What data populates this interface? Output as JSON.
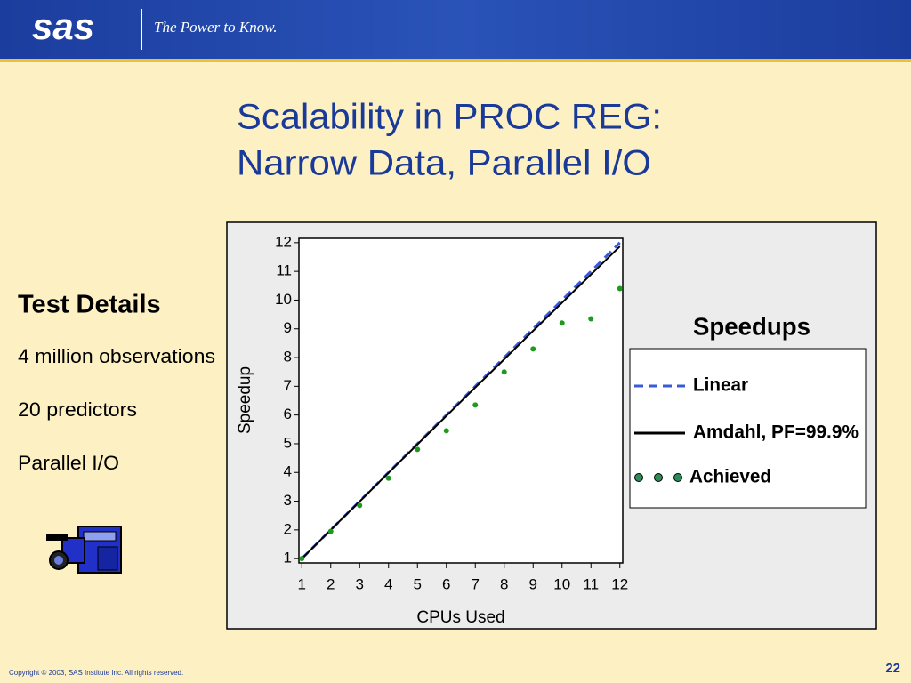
{
  "header": {
    "logo": "sas",
    "tagline": "The Power to Know."
  },
  "title": [
    "Scalability in PROC REG:",
    "Narrow Data, Parallel I/O"
  ],
  "details": {
    "heading": "Test Details",
    "items": [
      "4 million observations",
      "20 predictors",
      "Parallel I/O"
    ]
  },
  "footer": {
    "copyright": "Copyright © 2003, SAS Institute Inc. All rights reserved.",
    "page": "22"
  },
  "chart_data": {
    "type": "line",
    "x_label": "CPUs Used",
    "y_label": "Speedup",
    "legend_title": "Speedups",
    "x": [
      1,
      2,
      3,
      4,
      5,
      6,
      7,
      8,
      9,
      10,
      11,
      12
    ],
    "series": [
      {
        "name": "Linear",
        "color": "#3a5bd9",
        "line_style": "dashed",
        "values": [
          1,
          2,
          3,
          4,
          5,
          6,
          7,
          8,
          9,
          10,
          11,
          12
        ]
      },
      {
        "name": "Amdahl, PF=99.9%",
        "color": "#000000",
        "line_style": "solid",
        "values": [
          1,
          2.0,
          2.99,
          3.99,
          4.98,
          5.97,
          6.96,
          7.94,
          8.93,
          9.91,
          10.89,
          11.87
        ]
      },
      {
        "name": "Achieved",
        "color": "#1f9a1f",
        "line_style": "markers",
        "values": [
          1,
          1.95,
          2.85,
          3.8,
          4.8,
          5.45,
          6.35,
          7.5,
          8.3,
          9.2,
          9.35,
          10.4
        ]
      }
    ],
    "xlim": [
      0.9,
      12.1
    ],
    "ylim": [
      0.85,
      12.15
    ],
    "xticks": [
      1,
      2,
      3,
      4,
      5,
      6,
      7,
      8,
      9,
      10,
      11,
      12
    ],
    "yticks": [
      1,
      2,
      3,
      4,
      5,
      6,
      7,
      8,
      9,
      10,
      11,
      12
    ]
  }
}
